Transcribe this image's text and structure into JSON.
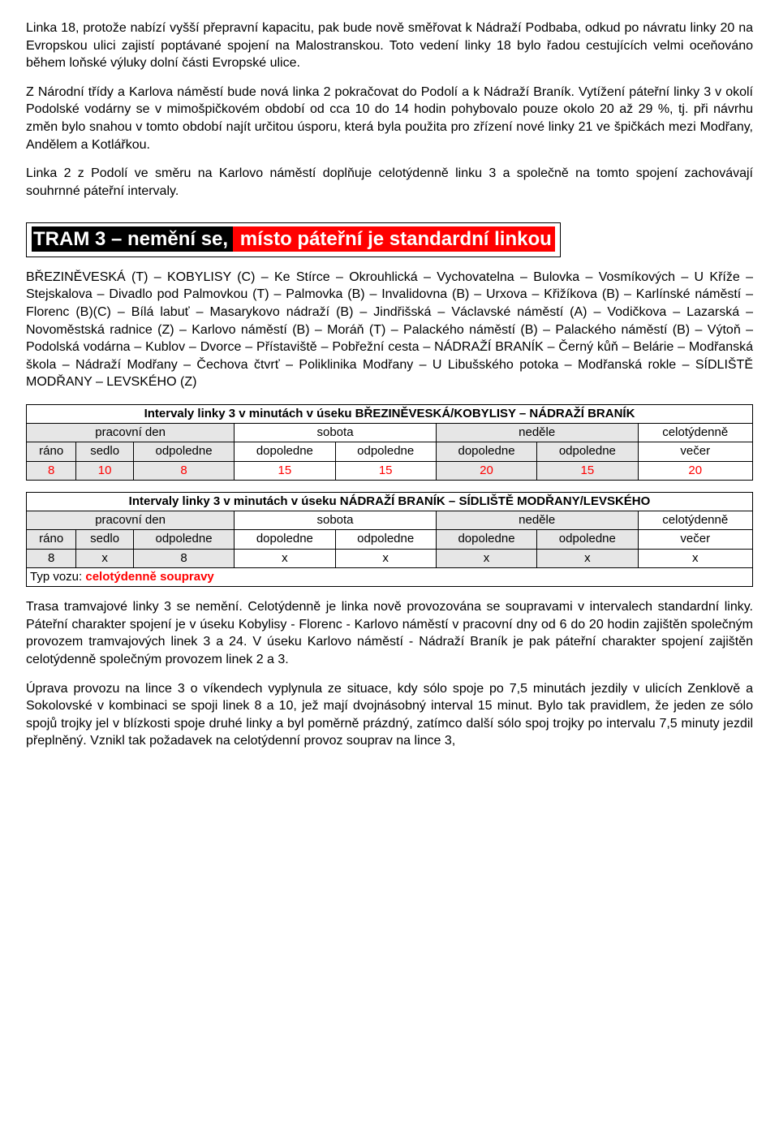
{
  "colors": {
    "black": "#000000",
    "red": "#ff0000",
    "white": "#ffffff",
    "shade": "#e6e6e6"
  },
  "para1": "Linka 18, protože nabízí vyšší přepravní kapacitu, pak bude nově směřovat k Nádraží Podbaba, odkud po návratu linky 20 na Evropskou ulici zajistí poptávané spojení na Malostranskou. Toto vedení linky 18 bylo řadou cestujících velmi oceňováno během loňské výluky dolní části Evropské ulice.",
  "para2": "Z Národní třídy a Karlova náměstí bude nová linka 2 pokračovat do Podolí a k Nádraží Braník. Vytížení páteřní linky 3 v okolí Podolské vodárny se v mimošpičkovém období od cca 10 do 14 hodin pohybovalo pouze okolo 20 až 29 %, tj. při návrhu změn bylo snahou v tomto období najít určitou úsporu, která byla použita pro zřízení nové linky 21 ve špičkách mezi Modřany, Andělem a Kotlářkou.",
  "para3": "Linka 2 z Podolí ve směru na Karlovo náměstí doplňuje celotýdenně linku 3 a společně na tomto spojení zachovávají souhrnné páteřní intervaly.",
  "heading": {
    "black": " TRAM 3 – nemění se,",
    "red": " místo páteřní je standardní linkou "
  },
  "route": "BŘEZINĚVESKÁ (T) – KOBYLISY (C) – Ke Stírce – Okrouhlická – Vychovatelna – Bulovka – Vosmíkových – U Kříže – Stejskalova – Divadlo pod Palmovkou (T) – Palmovka (B) – Invalidovna (B) – Urxova – Křižíkova (B) – Karlínské náměstí – Florenc (B)(C) – Bílá labuť – Masarykovo nádraží (B) – Jindřišská – Václavské náměstí (A) – Vodičkova – Lazarská – Novoměstská radnice (Z) – Karlovo náměstí (B) – Moráň (T) – Palackého náměstí (B) – Palackého náměstí (B) – Výtoň – Podolská vodárna – Kublov – Dvorce – Přístaviště – Pobřežní cesta – NÁDRAŽÍ BRANÍK – Černý kůň – Belárie – Modřanská škola – Nádraží Modřany – Čechova čtvrť – Poliklinika Modřany – U Libušského potoka – Modřanská rokle – SÍDLIŠTĚ MODŘANY – LEVSKÉHO (Z)",
  "table1": {
    "title": "Intervaly linky 3 v minutách v úseku BŘEZINĚVESKÁ/KOBYLISY – NÁDRAŽÍ BRANÍK",
    "header_groups": [
      "pracovní den",
      "sobota",
      "neděle",
      "celotýdenně"
    ],
    "sub_headers": [
      "ráno",
      "sedlo",
      "odpoledne",
      "dopoledne",
      "odpoledne",
      "dopoledne",
      "odpoledne",
      "večer"
    ],
    "values": [
      "8",
      "10",
      "8",
      "15",
      "15",
      "20",
      "15",
      "20"
    ]
  },
  "table2": {
    "title": "Intervaly linky 3 v minutách v úseku NÁDRAŽÍ BRANÍK – SÍDLIŠTĚ MODŘANY/LEVSKÉHO",
    "header_groups": [
      "pracovní den",
      "sobota",
      "neděle",
      "celotýdenně"
    ],
    "sub_headers": [
      "ráno",
      "sedlo",
      "odpoledne",
      "dopoledne",
      "odpoledne",
      "dopoledne",
      "odpoledne",
      "večer"
    ],
    "values": [
      "8",
      "x",
      "8",
      "x",
      "x",
      "x",
      "x",
      "x"
    ],
    "typ_label": "Typ vozu: ",
    "typ_value": "celotýdenně soupravy"
  },
  "para4": "Trasa tramvajové linky 3 se nemění. Celotýdenně je linka nově provozována se soupravami v intervalech standardní linky. Páteřní charakter spojení je v úseku Kobylisy - Florenc - Karlovo náměstí v pracovní dny od 6 do 20 hodin zajištěn společným provozem tramvajových linek 3 a 24. V úseku Karlovo náměstí - Nádraží Braník je pak páteřní charakter spojení zajištěn celotýdenně společným provozem linek 2 a 3.",
  "para5": "Úprava provozu na lince 3 o víkendech vyplynula ze situace, kdy sólo spoje po 7,5 minutách jezdily v ulicích Zenklově a Sokolovské v kombinaci se spoji linek 8 a 10, jež mají dvojnásobný interval 15 minut. Bylo tak pravidlem, že jeden ze sólo spojů trojky jel v blízkosti spoje druhé linky a byl poměrně prázdný, zatímco další sólo spoj trojky po intervalu 7,5 minuty jezdil přeplněný. Vznikl tak požadavek na celotýdenní provoz souprav na lince 3,"
}
